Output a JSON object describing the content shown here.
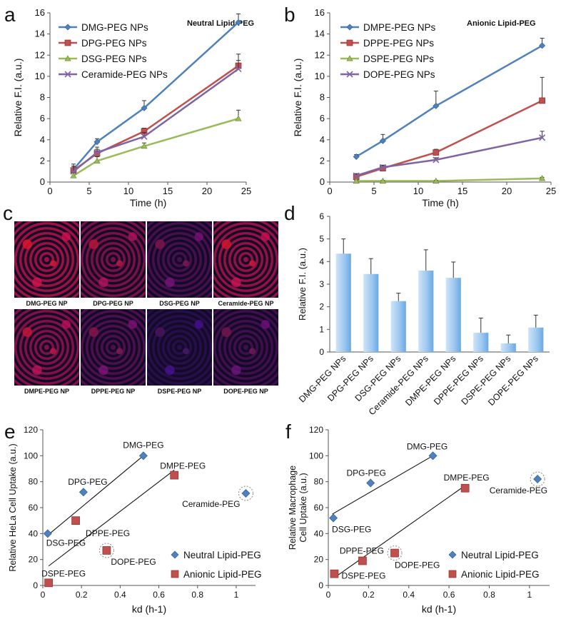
{
  "panel_letters": [
    "a",
    "b",
    "c",
    "d",
    "e",
    "f"
  ],
  "colors": {
    "blue": "#4f81bd",
    "red": "#c0504d",
    "green": "#9bbb59",
    "purple": "#8064a2",
    "bar_fill": "#9ec8f0",
    "bar_edge": "#6aa9e4",
    "scatter_blue": "#4f81bd",
    "scatter_red": "#c0504d"
  },
  "chart_data": [
    {
      "id": "a",
      "type": "line",
      "title": "Neutral Lipid-PEG",
      "xlabel": "Time (h)",
      "ylabel": "Relative F.I. (a.u.)",
      "xlim": [
        0,
        25
      ],
      "ylim": [
        0,
        16
      ],
      "xticks": [
        0,
        5,
        10,
        15,
        20,
        25
      ],
      "yticks": [
        0,
        2,
        4,
        6,
        8,
        10,
        12,
        14,
        16
      ],
      "x": [
        3,
        6,
        12,
        24
      ],
      "series": [
        {
          "name": "DMG-PEG NPs",
          "color": "blue",
          "marker": "diamond",
          "values": [
            1.2,
            3.8,
            7.0,
            15.1
          ],
          "err": [
            0.5,
            0.3,
            0.7,
            0.8
          ]
        },
        {
          "name": "DPG-PEG NPs",
          "color": "red",
          "marker": "square",
          "values": [
            1.1,
            2.7,
            4.8,
            11.0
          ],
          "err": [
            0.4,
            0.4,
            0.3,
            1.1
          ]
        },
        {
          "name": "DSG-PEG NPs",
          "color": "green",
          "marker": "triangle",
          "values": [
            0.6,
            2.0,
            3.4,
            6.0
          ],
          "err": [
            0.3,
            0.4,
            0.3,
            0.8
          ]
        },
        {
          "name": "Ceramide-PEG NPs",
          "color": "purple",
          "marker": "x",
          "values": [
            1.0,
            2.8,
            4.3,
            10.7
          ],
          "err": [
            0.5,
            0.5,
            0.4,
            0.8
          ]
        }
      ]
    },
    {
      "id": "b",
      "type": "line",
      "title": "Anionic Lipid-PEG",
      "xlabel": "Time (h)",
      "ylabel": "Relative F.I. (a.u.)",
      "xlim": [
        0,
        25
      ],
      "ylim": [
        0,
        16
      ],
      "xticks": [
        0,
        5,
        10,
        15,
        20,
        25
      ],
      "yticks": [
        0,
        2,
        4,
        6,
        8,
        10,
        12,
        14,
        16
      ],
      "x": [
        3,
        6,
        12,
        24
      ],
      "series": [
        {
          "name": "DMPE-PEG NPs",
          "color": "blue",
          "marker": "diamond",
          "values": [
            2.4,
            3.9,
            7.2,
            12.9
          ],
          "err": [
            0.2,
            0.6,
            1.4,
            0.7
          ]
        },
        {
          "name": "DPPE-PEG NPs",
          "color": "red",
          "marker": "square",
          "values": [
            0.5,
            1.3,
            2.8,
            7.7
          ],
          "err": [
            0.2,
            0.2,
            0.3,
            2.2
          ]
        },
        {
          "name": "DSPE-PEG NPs",
          "color": "green",
          "marker": "triangle",
          "values": [
            0.1,
            0.1,
            0.1,
            0.35
          ],
          "err": [
            0.05,
            0.05,
            0.05,
            0.1
          ]
        },
        {
          "name": "DOPE-PEG NPs",
          "color": "purple",
          "marker": "x",
          "values": [
            0.6,
            1.4,
            2.1,
            4.2
          ],
          "err": [
            0.2,
            0.2,
            0.2,
            0.6
          ]
        }
      ]
    },
    {
      "id": "d",
      "type": "bar",
      "ylabel": "Relative F.I. (a.u.)",
      "ylim": [
        0,
        6
      ],
      "yticks": [
        0,
        1,
        2,
        3,
        4,
        5,
        6
      ],
      "categories": [
        "DMG-PEG NPs",
        "DPG-PEG NPs",
        "DSG-PEG NPs",
        "Ceramide-PEG NPs",
        "DMPE-PEG NPs",
        "DPPE-PEG NPs",
        "DSPE-PEG NPs",
        "DOPE-PEG NPs"
      ],
      "values": [
        4.35,
        3.45,
        2.25,
        3.6,
        3.28,
        0.85,
        0.38,
        1.08
      ],
      "err": [
        0.65,
        0.68,
        0.35,
        0.92,
        0.7,
        0.65,
        0.37,
        0.55
      ]
    },
    {
      "id": "e",
      "type": "scatter",
      "xlabel": "kd (h-1)",
      "ylabel": "Relative HeLa Cell Uptake (a.u.)",
      "xlim": [
        0,
        1.1
      ],
      "ylim": [
        0,
        120
      ],
      "xticks": [
        0,
        0.2,
        0.4,
        0.6,
        0.8,
        1
      ],
      "yticks": [
        0,
        20,
        40,
        60,
        80,
        100,
        120
      ],
      "series": [
        {
          "name": "Neutral Lipid-PEG",
          "color": "scatter_blue",
          "marker": "diamond",
          "points": [
            {
              "label": "DMG-PEG",
              "x": 0.52,
              "y": 100
            },
            {
              "label": "DPG-PEG",
              "x": 0.21,
              "y": 72
            },
            {
              "label": "DSG-PEG",
              "x": 0.025,
              "y": 40
            },
            {
              "label": "Ceramide-PEG",
              "x": 1.05,
              "y": 71,
              "circled": true
            }
          ]
        },
        {
          "name": "Anionic Lipid-PEG",
          "color": "scatter_red",
          "marker": "square",
          "points": [
            {
              "label": "DMPE-PEG",
              "x": 0.68,
              "y": 85
            },
            {
              "label": "DPPE-PEG",
              "x": 0.17,
              "y": 50
            },
            {
              "label": "DOPE-PEG",
              "x": 0.33,
              "y": 27,
              "circled": true
            },
            {
              "label": "DSPE-PEG",
              "x": 0.03,
              "y": 2
            }
          ]
        }
      ],
      "fits": [
        {
          "from": [
            0.02,
            38
          ],
          "to": [
            0.52,
            100
          ]
        },
        {
          "from": [
            0.03,
            15
          ],
          "to": [
            0.68,
            89
          ]
        }
      ]
    },
    {
      "id": "f",
      "type": "scatter",
      "xlabel": "kd (h-1)",
      "ylabel": "Relative Macrophage Cell Uptake (a.u.)",
      "xlim": [
        0,
        1.1
      ],
      "ylim": [
        0,
        120
      ],
      "xticks": [
        0,
        0.2,
        0.4,
        0.6,
        0.8,
        1
      ],
      "yticks": [
        0,
        20,
        40,
        60,
        80,
        100,
        120
      ],
      "series": [
        {
          "name": "Neutral Lipid-PEG",
          "color": "scatter_blue",
          "marker": "diamond",
          "points": [
            {
              "label": "DMG-PEG",
              "x": 0.52,
              "y": 100
            },
            {
              "label": "DPG-PEG",
              "x": 0.21,
              "y": 79
            },
            {
              "label": "DSG-PEG",
              "x": 0.025,
              "y": 52
            },
            {
              "label": "Ceramide-PEG",
              "x": 1.04,
              "y": 82,
              "circled": true
            }
          ]
        },
        {
          "name": "Anionic Lipid-PEG",
          "color": "scatter_red",
          "marker": "square",
          "points": [
            {
              "label": "DMPE-PEG",
              "x": 0.68,
              "y": 75
            },
            {
              "label": "DPPE-PEG",
              "x": 0.17,
              "y": 19
            },
            {
              "label": "DOPE-PEG",
              "x": 0.33,
              "y": 25,
              "circled": true
            },
            {
              "label": "DSPE-PEG",
              "x": 0.03,
              "y": 9
            }
          ]
        }
      ],
      "fits": [
        {
          "from": [
            0.02,
            55
          ],
          "to": [
            0.52,
            100
          ]
        },
        {
          "from": [
            0.03,
            6
          ],
          "to": [
            0.68,
            77
          ]
        }
      ]
    }
  ],
  "micrographs": {
    "captions": [
      "DMG-PEG NP",
      "DPG-PEG NP",
      "DSG-PEG NP",
      "Ceramide-PEG NP",
      "DMPE-PEG NP",
      "DPPE-PEG NP",
      "DSPE-PEG NP",
      "DOPE-PEG NP"
    ],
    "red_intensity": [
      0.9,
      0.7,
      0.35,
      0.85,
      0.75,
      0.4,
      0.05,
      0.3
    ]
  }
}
